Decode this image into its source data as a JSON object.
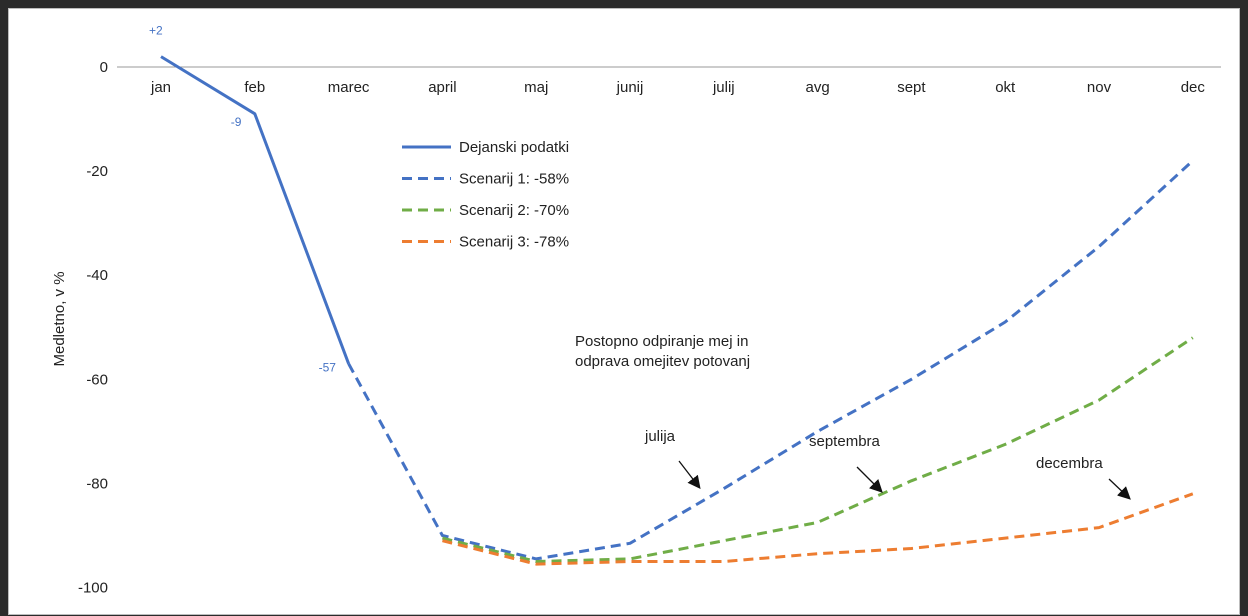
{
  "chart_data": {
    "type": "line",
    "ylabel": "Medletno, v %",
    "categories": [
      "jan",
      "feb",
      "marec",
      "april",
      "maj",
      "junij",
      "julij",
      "avg",
      "sept",
      "okt",
      "nov",
      "dec"
    ],
    "ylim": [
      -100,
      0
    ],
    "yticks": [
      0,
      -20,
      -40,
      -60,
      -80,
      -100
    ],
    "grid": false,
    "legend_position": "upper-center",
    "series": [
      {
        "name": "Dejanski podatki",
        "style": "solid",
        "color": "#4472c4",
        "values": [
          2,
          -9,
          -57,
          null,
          null,
          null,
          null,
          null,
          null,
          null,
          null,
          null
        ]
      },
      {
        "name": "Scenarij 1:  -58%",
        "style": "dashed",
        "color": "#4472c4",
        "values": [
          null,
          null,
          -57,
          -90,
          -94.5,
          -91.5,
          -81,
          -70,
          -60,
          -49,
          -34.5,
          -18
        ]
      },
      {
        "name": "Scenarij 2:  -70%",
        "style": "dashed",
        "color": "#70ad47",
        "values": [
          null,
          null,
          null,
          -90.5,
          -95,
          -94.5,
          -91,
          -87.5,
          -79.5,
          -72.5,
          -64,
          -52
        ]
      },
      {
        "name": "Scenarij 3:  -78%",
        "style": "dashed",
        "color": "#ed7d31",
        "values": [
          null,
          null,
          null,
          -91,
          -95.5,
          -95,
          -95,
          -93.5,
          -92.5,
          -90.5,
          -88.5,
          -82
        ]
      }
    ],
    "data_labels": [
      {
        "text": "+2",
        "category": "jan",
        "value": 2
      },
      {
        "text": "-9",
        "category": "feb",
        "value": -9
      },
      {
        "text": "-57",
        "category": "marec",
        "value": -57
      }
    ],
    "annotations": [
      {
        "lines": [
          "Postopno odpiranje mej in",
          "odprava omejitev potovanj"
        ],
        "category": "junij",
        "value": -54
      },
      {
        "text": "julija",
        "category": "junij",
        "value": -73,
        "arrow_to": {
          "category": "julij",
          "value": -81
        }
      },
      {
        "text": "septembra",
        "category": "avg",
        "value": -74,
        "arrow_to": {
          "category": "sept",
          "value": -80
        }
      },
      {
        "text": "decembra",
        "category": "nov",
        "value": -76,
        "arrow_to": {
          "category": "dec",
          "value": -82
        }
      }
    ]
  }
}
